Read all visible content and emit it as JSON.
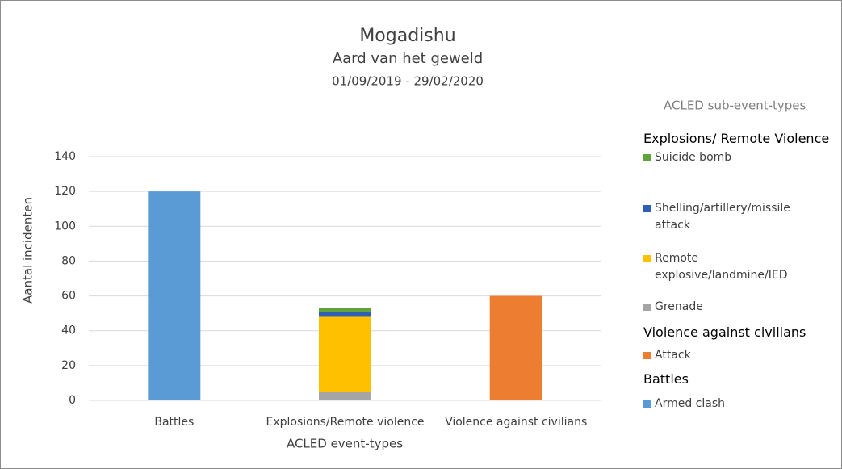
{
  "chart_data": {
    "type": "bar",
    "stacked": true,
    "title": "Mogadishu",
    "subtitle": "Aard van het geweld",
    "date_range": "01/09/2019 - 29/02/2020",
    "y_label": "Aantal incidenten",
    "x_label": "ACLED event-types",
    "categories": [
      "Battles",
      "Explosions/Remote violence",
      "Violence against civilians"
    ],
    "ylim": [
      0,
      140
    ],
    "yticks": [
      0,
      20,
      40,
      60,
      80,
      100,
      120,
      140
    ],
    "grid": true,
    "legend_title": "ACLED sub-event-types",
    "groups": [
      {
        "name": "Explosions/ Remote Violence",
        "series": [
          {
            "name": "Suicide bomb",
            "color": "#5fa33a",
            "values": [
              null,
              2,
              null
            ]
          },
          {
            "name": "Shelling/artillery/missile attack",
            "color": "#2f5fb3",
            "values": [
              null,
              3,
              null
            ]
          },
          {
            "name": "Remote explosive/landmine/IED",
            "color": "#ffc000",
            "values": [
              null,
              43,
              null
            ]
          },
          {
            "name": "Grenade",
            "color": "#a5a5a5",
            "values": [
              null,
              5,
              null
            ]
          }
        ]
      },
      {
        "name": "Violence against civilians",
        "series": [
          {
            "name": "Attack",
            "color": "#ed7d31",
            "values": [
              null,
              null,
              60
            ]
          }
        ]
      },
      {
        "name": "Battles",
        "series": [
          {
            "name": "Armed clash",
            "color": "#5b9bd5",
            "values": [
              120,
              null,
              null
            ]
          }
        ]
      }
    ]
  }
}
